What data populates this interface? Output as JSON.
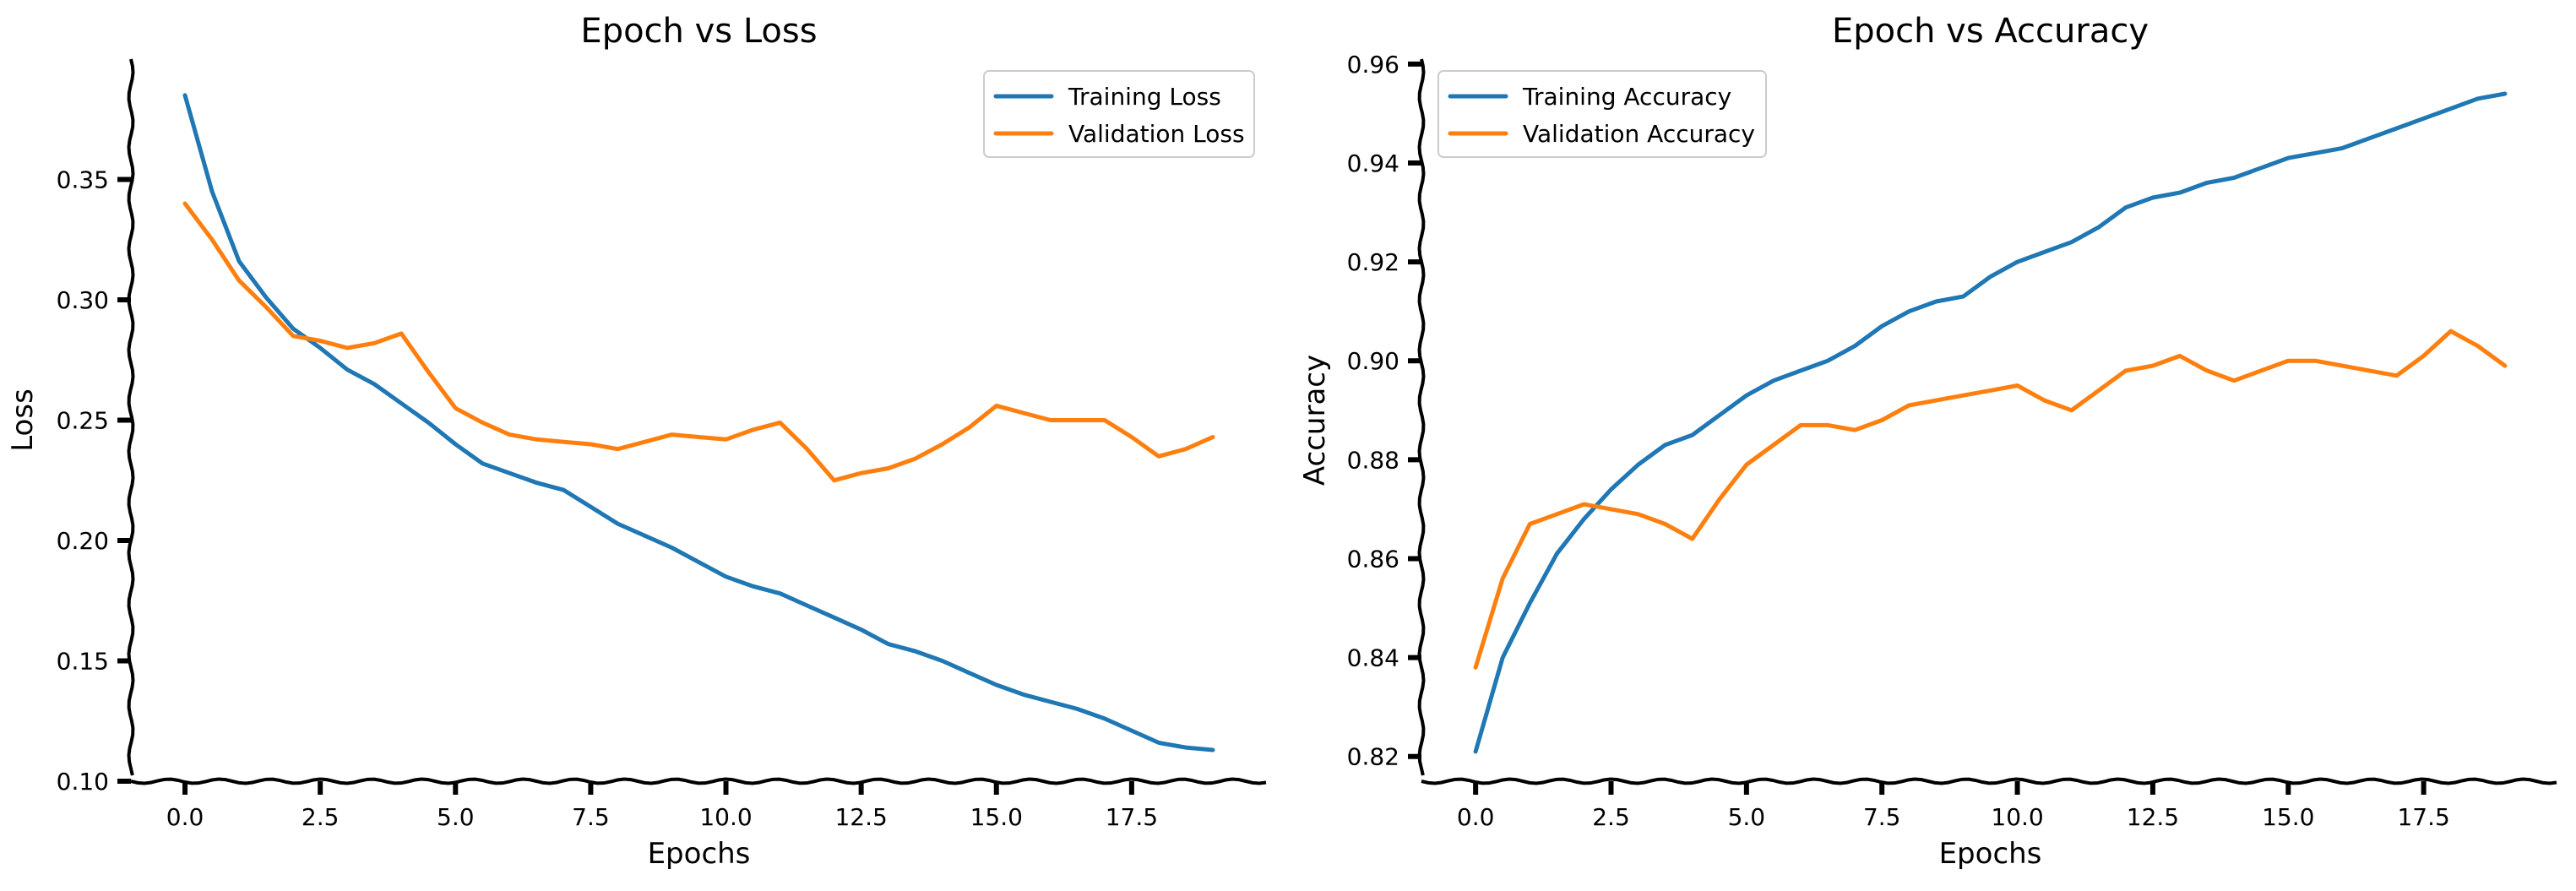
{
  "chart_data": [
    {
      "type": "line",
      "title": "Epoch vs Loss",
      "xlabel": "Epochs",
      "ylabel": "Loss",
      "xlim": [
        -1,
        20
      ],
      "ylim": [
        0.1,
        0.4
      ],
      "xticks": [
        0.0,
        2.5,
        5.0,
        7.5,
        10.0,
        12.5,
        15.0,
        17.5
      ],
      "xtick_labels": [
        "0.0",
        "2.5",
        "5.0",
        "7.5",
        "10.0",
        "12.5",
        "15.0",
        "17.5"
      ],
      "yticks": [
        0.1,
        0.15,
        0.2,
        0.25,
        0.3,
        0.35
      ],
      "ytick_labels": [
        "0.10",
        "0.15",
        "0.20",
        "0.25",
        "0.30",
        "0.35"
      ],
      "grid": false,
      "legend_position": "top-right",
      "x": [
        0,
        0.5,
        1,
        1.5,
        2,
        2.5,
        3,
        3.5,
        4,
        4.5,
        5,
        5.5,
        6,
        6.5,
        7,
        7.5,
        8,
        8.5,
        9,
        9.5,
        10,
        10.5,
        11,
        11.5,
        12,
        12.5,
        13,
        13.5,
        14,
        14.5,
        15,
        15.5,
        16,
        16.5,
        17,
        17.5,
        18,
        18.5,
        19
      ],
      "series": [
        {
          "name": "Training Loss",
          "color": "#1f77b4",
          "values": [
            0.385,
            0.345,
            0.316,
            0.301,
            0.288,
            0.28,
            0.271,
            0.265,
            0.257,
            0.249,
            0.24,
            0.232,
            0.228,
            0.224,
            0.221,
            0.214,
            0.207,
            0.202,
            0.197,
            0.191,
            0.185,
            0.181,
            0.178,
            0.173,
            0.168,
            0.163,
            0.157,
            0.154,
            0.15,
            0.145,
            0.14,
            0.136,
            0.133,
            0.13,
            0.126,
            0.121,
            0.116,
            0.114,
            0.113
          ]
        },
        {
          "name": "Validation Loss",
          "color": "#ff7f0e",
          "values": [
            0.34,
            0.325,
            0.308,
            0.297,
            0.285,
            0.283,
            0.28,
            0.282,
            0.286,
            0.27,
            0.255,
            0.249,
            0.244,
            0.242,
            0.241,
            0.24,
            0.238,
            0.241,
            0.244,
            0.243,
            0.242,
            0.246,
            0.249,
            0.238,
            0.225,
            0.228,
            0.23,
            0.234,
            0.24,
            0.247,
            0.256,
            0.253,
            0.25,
            0.25,
            0.25,
            0.243,
            0.235,
            0.238,
            0.243
          ]
        }
      ]
    },
    {
      "type": "line",
      "title": "Epoch vs Accuracy",
      "xlabel": "Epochs",
      "ylabel": "Accuracy",
      "xlim": [
        -1,
        20
      ],
      "ylim": [
        0.815,
        0.961
      ],
      "xticks": [
        0.0,
        2.5,
        5.0,
        7.5,
        10.0,
        12.5,
        15.0,
        17.5
      ],
      "xtick_labels": [
        "0.0",
        "2.5",
        "5.0",
        "7.5",
        "10.0",
        "12.5",
        "15.0",
        "17.5"
      ],
      "yticks": [
        0.82,
        0.84,
        0.86,
        0.88,
        0.9,
        0.92,
        0.94,
        0.96
      ],
      "ytick_labels": [
        "0.82",
        "0.84",
        "0.86",
        "0.88",
        "0.90",
        "0.92",
        "0.94",
        "0.96"
      ],
      "grid": false,
      "legend_position": "top-left",
      "x": [
        0,
        0.5,
        1,
        1.5,
        2,
        2.5,
        3,
        3.5,
        4,
        4.5,
        5,
        5.5,
        6,
        6.5,
        7,
        7.5,
        8,
        8.5,
        9,
        9.5,
        10,
        10.5,
        11,
        11.5,
        12,
        12.5,
        13,
        13.5,
        14,
        14.5,
        15,
        15.5,
        16,
        16.5,
        17,
        17.5,
        18,
        18.5,
        19
      ],
      "series": [
        {
          "name": "Training Accuracy",
          "color": "#1f77b4",
          "values": [
            0.821,
            0.84,
            0.851,
            0.861,
            0.868,
            0.874,
            0.879,
            0.883,
            0.885,
            0.889,
            0.893,
            0.896,
            0.898,
            0.9,
            0.903,
            0.907,
            0.91,
            0.912,
            0.913,
            0.917,
            0.92,
            0.922,
            0.924,
            0.927,
            0.931,
            0.933,
            0.934,
            0.936,
            0.937,
            0.939,
            0.941,
            0.942,
            0.943,
            0.945,
            0.947,
            0.949,
            0.951,
            0.953,
            0.954
          ]
        },
        {
          "name": "Validation Accuracy",
          "color": "#ff7f0e",
          "values": [
            0.838,
            0.856,
            0.867,
            0.869,
            0.871,
            0.87,
            0.869,
            0.867,
            0.864,
            0.872,
            0.879,
            0.883,
            0.887,
            0.887,
            0.886,
            0.888,
            0.891,
            0.892,
            0.893,
            0.894,
            0.895,
            0.892,
            0.89,
            0.894,
            0.898,
            0.899,
            0.901,
            0.898,
            0.896,
            0.898,
            0.9,
            0.9,
            0.899,
            0.898,
            0.897,
            0.901,
            0.906,
            0.903,
            0.899
          ]
        }
      ]
    }
  ]
}
